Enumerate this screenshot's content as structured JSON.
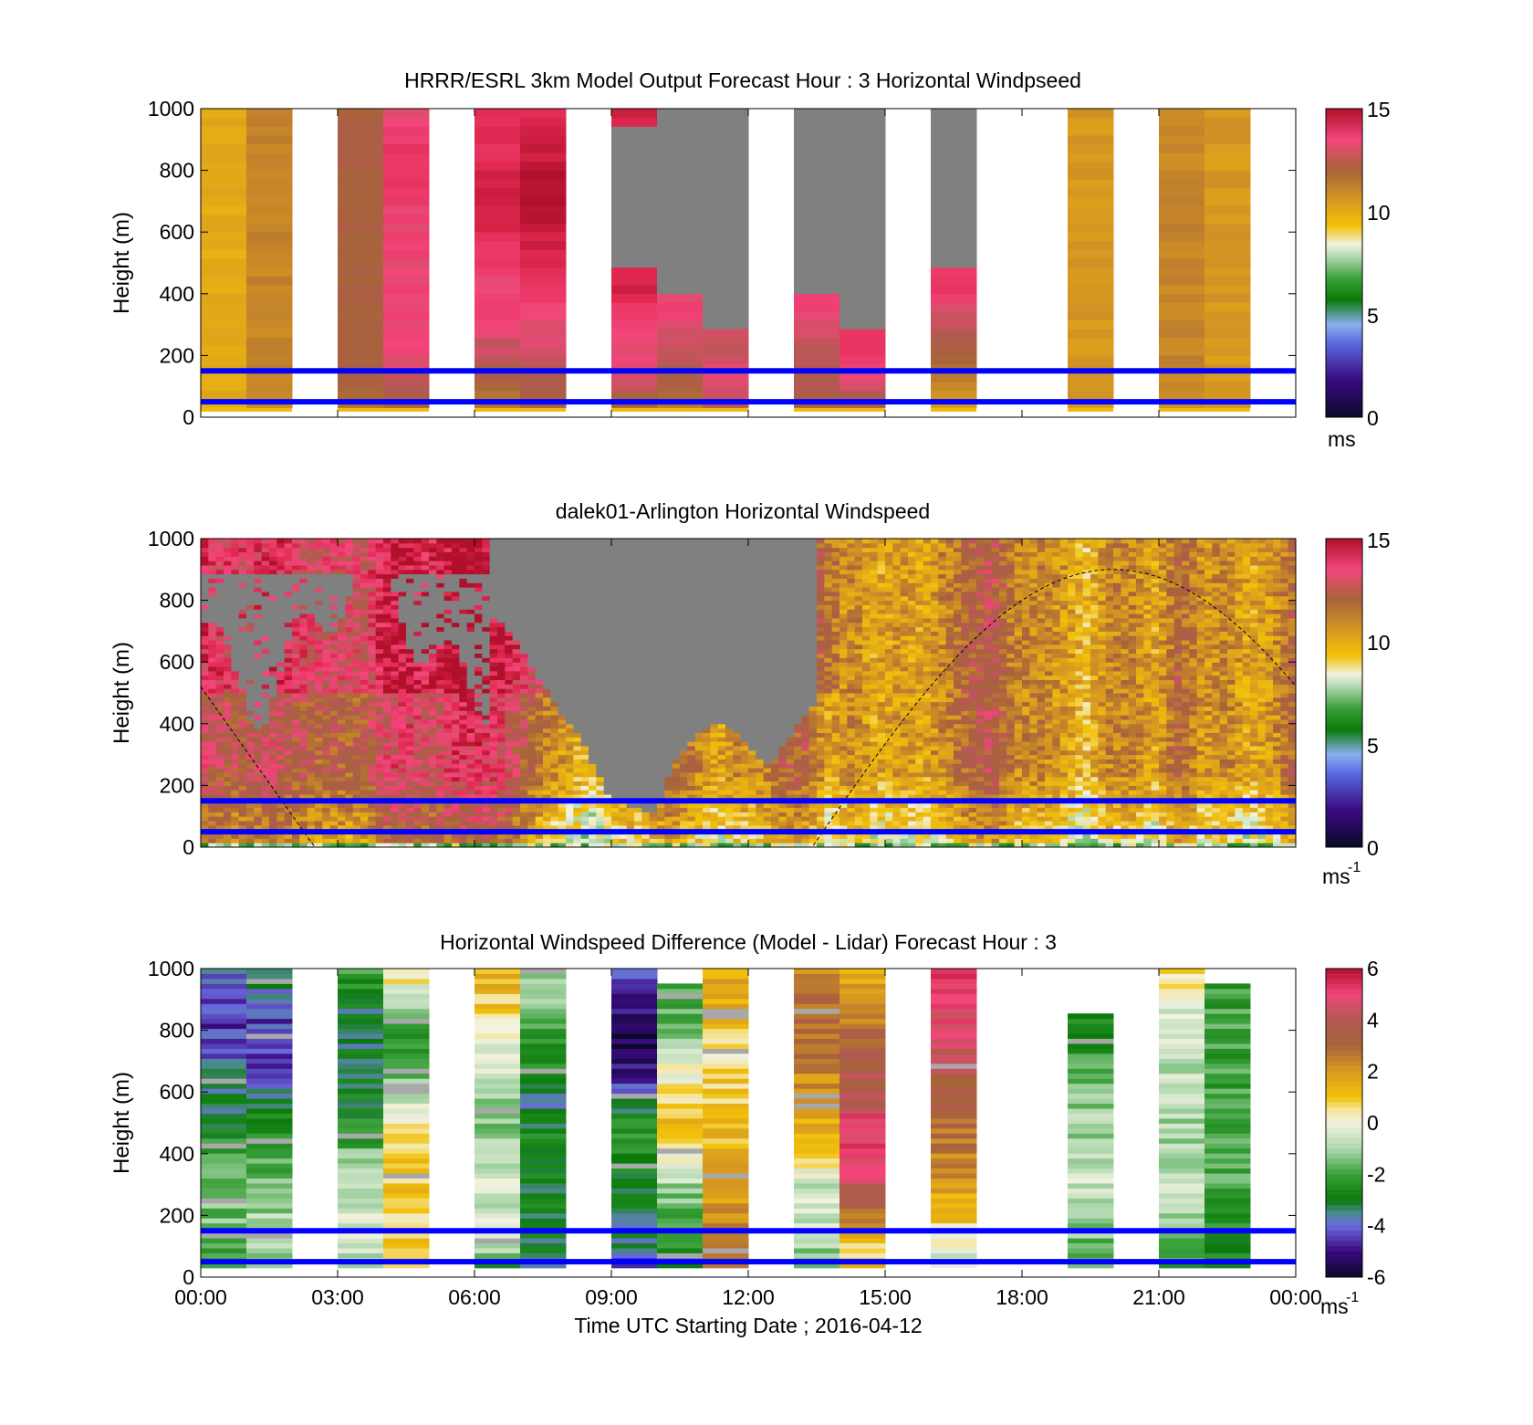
{
  "figure": {
    "xaxis_label": "Time UTC  Starting Date ; 2016-04-12",
    "height_label": "Height (m)",
    "x_ticks": [
      "00:00",
      "03:00",
      "06:00",
      "09:00",
      "12:00",
      "15:00",
      "18:00",
      "21:00",
      "00:00"
    ],
    "y_ticks": [
      "0",
      "200",
      "400",
      "600",
      "800",
      "1000"
    ]
  },
  "colors": {
    "missing_gray": "#808080",
    "reference_lines": "#0000ff",
    "curve": "#000000"
  },
  "chart_data": [
    {
      "type": "heatmap",
      "title": "HRRR/ESRL 3km Model Output   Forecast Hour : 3 Horizontal Windpseed",
      "xlabel": "",
      "ylabel": "Height (m)",
      "xlim_hours": [
        0,
        24
      ],
      "ylim": [
        0,
        1000
      ],
      "colorbar": {
        "min": 0,
        "max": 15,
        "ticks": [
          "0",
          "5",
          "10",
          "15"
        ],
        "unit": "ms"
      },
      "reference_lines_m": [
        50,
        150
      ],
      "columns": [
        {
          "hour": 0,
          "values": [
            10,
            10,
            10,
            10,
            10,
            10,
            10,
            10,
            10,
            10
          ]
        },
        {
          "hour": 1,
          "values": [
            11,
            11,
            11,
            11,
            11,
            11,
            11,
            11,
            11,
            11
          ]
        },
        {
          "hour": 3,
          "values": [
            11,
            12,
            12,
            12,
            12,
            12,
            12,
            12,
            12,
            12
          ]
        },
        {
          "hour": 4,
          "values": [
            12,
            13,
            13.5,
            13.5,
            13.5,
            13.5,
            13.5,
            14,
            14,
            13
          ]
        },
        {
          "hour": 6,
          "values": [
            11,
            12,
            13,
            13.5,
            13.5,
            14,
            14.5,
            14.5,
            14,
            14
          ]
        },
        {
          "hour": 7,
          "values": [
            12,
            12.5,
            13,
            13.5,
            14,
            14.5,
            15,
            15,
            14.5,
            14
          ]
        },
        {
          "hour": 9,
          "values": [
            11,
            13,
            13.5,
            14,
            14.5,
            null,
            null,
            null,
            null,
            14.5
          ]
        },
        {
          "hour": 10,
          "values": [
            11,
            12,
            13,
            13.5,
            null,
            null,
            null,
            null,
            null,
            null
          ]
        },
        {
          "hour": 11,
          "values": [
            12,
            13.5,
            13,
            null,
            null,
            null,
            null,
            null,
            null,
            null
          ]
        },
        {
          "hour": 13,
          "values": [
            12,
            12.5,
            13,
            13.5,
            null,
            null,
            null,
            null,
            null,
            null
          ]
        },
        {
          "hour": 14,
          "values": [
            12,
            13,
            14,
            null,
            null,
            null,
            null,
            null,
            null,
            null
          ]
        },
        {
          "hour": 16,
          "values": [
            10,
            11,
            12,
            13,
            14,
            null,
            null,
            null,
            null,
            null
          ]
        },
        {
          "hour": 19,
          "values": [
            10.5,
            10.5,
            10.5,
            10.5,
            10.5,
            10.5,
            10.5,
            10.5,
            10.5,
            10.5
          ]
        },
        {
          "hour": 21,
          "values": [
            11,
            11,
            11,
            11,
            11,
            11,
            11,
            11,
            11,
            11
          ]
        },
        {
          "hour": 22,
          "values": [
            10.5,
            10.5,
            10.5,
            10.5,
            10.5,
            10.5,
            10.5,
            10.5,
            10.5,
            10.5
          ]
        }
      ]
    },
    {
      "type": "heatmap",
      "title": "dalek01-Arlington  Horizontal Windspeed",
      "xlabel": "",
      "ylabel": "Height (m)",
      "xlim_hours": [
        0,
        24
      ],
      "ylim": [
        0,
        1000
      ],
      "colorbar": {
        "min": 0,
        "max": 15,
        "ticks": [
          "0",
          "5",
          "10",
          "15"
        ],
        "unit": "ms",
        "unit_exponent": "-1"
      },
      "reference_lines_m": [
        50,
        150
      ],
      "missing_region": {
        "hours": [
          6.4,
          13.5
        ],
        "base_m": [
          750,
          680,
          550,
          430,
          330,
          160,
          130,
          110,
          300,
          380,
          410,
          330,
          260,
          380,
          480
        ],
        "top_m": 1000
      },
      "column_base_speed": [
        13,
        12.5,
        12.5,
        13,
        12.5,
        12,
        12,
        12,
        13.5,
        13.5,
        13,
        14,
        14,
        13.5,
        12,
        11,
        10,
        9.5,
        11,
        11,
        12,
        11.5,
        10,
        11,
        11,
        12,
        12,
        10,
        11,
        10,
        10.5,
        10,
        11,
        12,
        12.5,
        11,
        11,
        10.5,
        9.5,
        11,
        11,
        10,
        12,
        10.5,
        11,
        10,
        10.5,
        12
      ],
      "curve": {
        "peak_m": 900,
        "peak_hour": 20,
        "zero_hours": [
          2.5,
          13.4
        ]
      }
    },
    {
      "type": "heatmap",
      "title": "Horizontal Windspeed Difference (Model - Lidar) Forecast Hour : 3",
      "xlabel": "Time UTC  Starting Date ; 2016-04-12",
      "ylabel": "Height (m)",
      "xlim_hours": [
        0,
        24
      ],
      "ylim": [
        0,
        1000
      ],
      "colorbar": {
        "min": -6,
        "max": 6,
        "ticks": [
          "-6",
          "-4",
          "-2",
          "0",
          "2",
          "4",
          "6"
        ],
        "unit": "ms",
        "unit_exponent": "-1"
      },
      "reference_lines_m": [
        50,
        150
      ],
      "columns": [
        {
          "hour": 0,
          "values": [
            -2,
            -2,
            -1.5,
            -1.5,
            -2,
            -3,
            -3.5,
            -4,
            -4.5,
            -4.5,
            -4
          ]
        },
        {
          "hour": 1,
          "values": [
            -1.5,
            -1,
            -1,
            -1.5,
            -2,
            -2.5,
            -3.5,
            -4.5,
            -4.5,
            -4,
            -3
          ]
        },
        {
          "hour": 3,
          "values": [
            -1,
            -0.5,
            -0.5,
            -1,
            -1.5,
            -2.5,
            -3,
            -3,
            -3.5,
            -3,
            -2
          ]
        },
        {
          "hour": 4,
          "values": [
            1,
            1,
            0.5,
            1,
            1,
            0,
            -1,
            -2,
            -2,
            -1,
            1
          ]
        },
        {
          "hour": 6,
          "values": [
            -3,
            -1,
            -0.5,
            -0.5,
            -1,
            -1.5,
            -1,
            -0.5,
            0.5,
            1,
            1.5
          ]
        },
        {
          "hour": 7,
          "values": [
            -5,
            -3,
            -3,
            -3,
            -2.5,
            -3,
            -3.5,
            -2.5,
            -2,
            -1.5,
            -1
          ]
        },
        {
          "hour": 9,
          "values": [
            -5,
            -3.5,
            -3,
            -3,
            -2.5,
            -2.5,
            -4,
            -5.5,
            -5.5,
            -5,
            -4
          ]
        },
        {
          "hour": 10,
          "values": [
            -4,
            -2.5,
            -2,
            -1,
            0.5,
            1,
            0.5,
            0,
            -1.5,
            -2,
            null
          ]
        },
        {
          "hour": 11,
          "values": [
            2,
            2.5,
            2,
            1.5,
            1.5,
            1,
            1,
            0.5,
            1,
            1.5,
            1.5
          ]
        },
        {
          "hour": 13,
          "values": [
            -1.5,
            -1,
            -0.5,
            -0.5,
            1,
            1.5,
            2,
            2.5,
            3,
            3,
            2.5
          ]
        },
        {
          "hour": 14,
          "values": [
            1,
            1,
            3,
            4.5,
            5,
            5,
            4,
            3.5,
            3,
            2,
            1.5
          ]
        },
        {
          "hour": 16,
          "values": [
            -1,
            0,
            1,
            2,
            2.5,
            3,
            3.5,
            4,
            4.5,
            5,
            5
          ]
        },
        {
          "hour": 19,
          "values": [
            -2,
            -1.5,
            -1,
            -0.5,
            -1,
            -1,
            -1.5,
            -2,
            -2.5,
            null,
            null
          ]
        },
        {
          "hour": 21,
          "values": [
            -2,
            -1.5,
            -1,
            -0.5,
            -1,
            -1,
            -0.5,
            -1,
            -0.5,
            -0.5,
            1
          ]
        },
        {
          "hour": 22,
          "values": [
            -3,
            -2.5,
            -2.5,
            -2,
            -2,
            -2,
            -2,
            -2,
            -2,
            -2,
            null
          ]
        }
      ]
    }
  ]
}
